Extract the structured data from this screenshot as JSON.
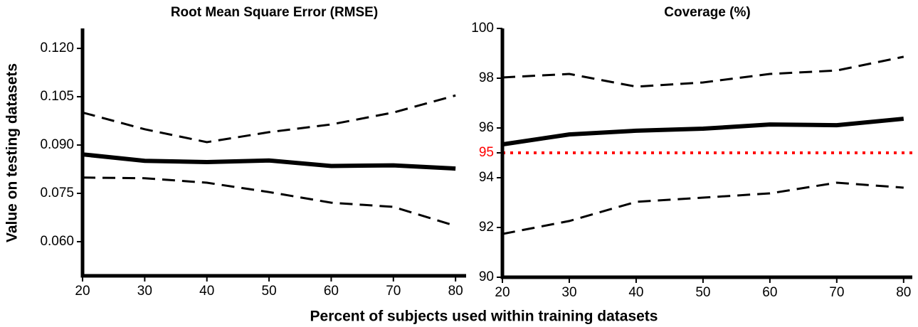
{
  "ylabel": "Value on testing datasets",
  "xlabel": "Percent of subjects used within training datasets",
  "chart_data": [
    {
      "type": "line",
      "title": "Root Mean Square Error (RMSE)",
      "x": [
        20,
        30,
        40,
        50,
        60,
        70,
        80
      ],
      "xlim": [
        20,
        81.7
      ],
      "xticks": [
        20,
        30,
        40,
        50,
        60,
        70,
        80
      ],
      "ylim": [
        0.0494,
        0.1262
      ],
      "yticks": [
        {
          "value": 0.06,
          "label": "0.060"
        },
        {
          "value": 0.075,
          "label": "0.075"
        },
        {
          "value": 0.09,
          "label": "0.090"
        },
        0.105,
        {
          "value": 0.12,
          "label": "0.120"
        }
      ],
      "series": [
        {
          "color": "#000000",
          "style": "solid",
          "values": [
            0.0871,
            0.0851,
            0.0847,
            0.0852,
            0.0835,
            0.0837,
            0.0827
          ]
        },
        {
          "color": "#000000",
          "style": "dashed",
          "values": [
            0.1001,
            0.0949,
            0.0909,
            0.094,
            0.0964,
            0.1001,
            0.1054
          ]
        },
        {
          "color": "#000000",
          "style": "dashed",
          "values": [
            0.0799,
            0.0797,
            0.0783,
            0.0754,
            0.0721,
            0.0708,
            0.0649
          ]
        }
      ]
    },
    {
      "type": "line",
      "title": "Coverage (%)",
      "x": [
        20,
        30,
        40,
        50,
        60,
        70,
        80
      ],
      "xlim": [
        20,
        81.3
      ],
      "xticks": [
        20,
        30,
        40,
        50,
        60,
        70,
        80
      ],
      "ylim": [
        90,
        100
      ],
      "yticks": [
        90,
        92,
        94,
        95,
        96,
        98,
        100
      ],
      "reference_line": {
        "value": 95,
        "color": "#ff0000"
      },
      "series": [
        {
          "color": "#000000",
          "style": "solid",
          "values": [
            95.34,
            95.74,
            95.89,
            95.97,
            96.14,
            96.11,
            96.37
          ]
        },
        {
          "color": "#000000",
          "style": "dashed",
          "values": [
            98.03,
            98.17,
            97.66,
            97.83,
            98.17,
            98.31,
            98.86
          ]
        },
        {
          "color": "#000000",
          "style": "dashed",
          "values": [
            91.74,
            92.26,
            93.03,
            93.2,
            93.37,
            93.8,
            93.6
          ]
        }
      ]
    }
  ]
}
